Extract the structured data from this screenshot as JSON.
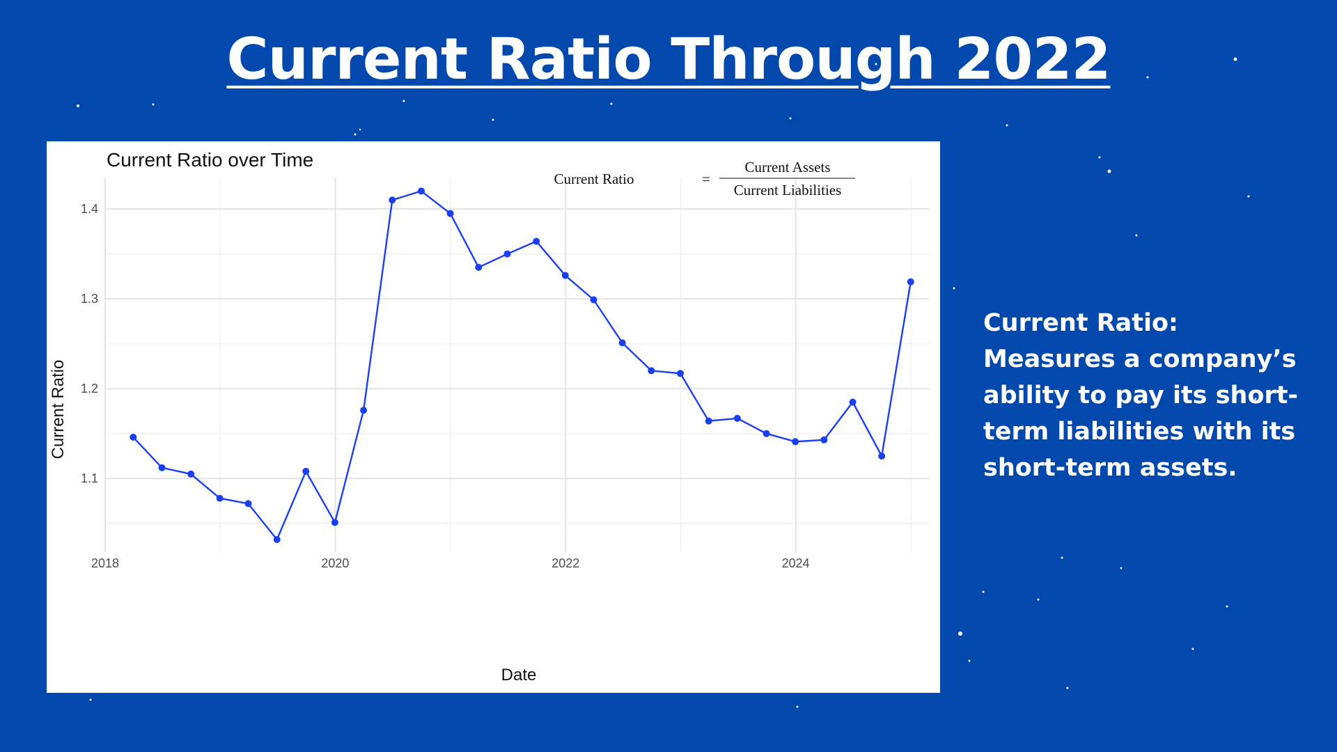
{
  "slide": {
    "title": "Current Ratio Through 2022",
    "description": "Current Ratio: Measures a company’s ability to pay its short-term liabilities with its short-term assets.",
    "background_color": "#0349ad",
    "text_color": "#ffffff"
  },
  "chart_data": {
    "type": "line",
    "title": "Current Ratio over Time",
    "xlabel": "Date",
    "ylabel": "Current Ratio",
    "formula": {
      "lhs": "Current Ratio",
      "operator": "=",
      "numerator": "Current Assets",
      "denominator": "Current Liabilities"
    },
    "x_ticks": [
      "2018",
      "2020",
      "2022",
      "2024"
    ],
    "y_ticks": [
      "1.1",
      "1.2",
      "1.3",
      "1.4"
    ],
    "xlim": [
      "2018-01-01",
      "2025-03-01"
    ],
    "ylim": [
      1.018,
      1.435
    ],
    "grid": true,
    "line_color": "#1a3ff0",
    "series": [
      {
        "x": [
          "2018-03-31",
          "2018-06-30",
          "2018-09-30",
          "2018-12-31",
          "2019-03-31",
          "2019-06-30",
          "2019-09-30",
          "2019-12-31",
          "2020-03-31",
          "2020-06-30",
          "2020-09-30",
          "2020-12-31",
          "2021-03-31",
          "2021-06-30",
          "2021-09-30",
          "2021-12-31",
          "2022-03-31",
          "2022-06-30",
          "2022-09-30",
          "2022-12-31",
          "2023-03-31",
          "2023-06-30",
          "2023-09-30",
          "2023-12-31",
          "2024-03-31",
          "2024-06-30",
          "2024-09-30",
          "2024-12-31"
        ],
        "values": [
          1.146,
          1.112,
          1.105,
          1.078,
          1.072,
          1.032,
          1.108,
          1.051,
          1.176,
          1.41,
          1.42,
          1.395,
          1.335,
          1.35,
          1.364,
          1.326,
          1.299,
          1.251,
          1.22,
          1.217,
          1.164,
          1.167,
          1.15,
          1.141,
          1.143,
          1.185,
          1.125,
          1.319
        ]
      }
    ]
  }
}
